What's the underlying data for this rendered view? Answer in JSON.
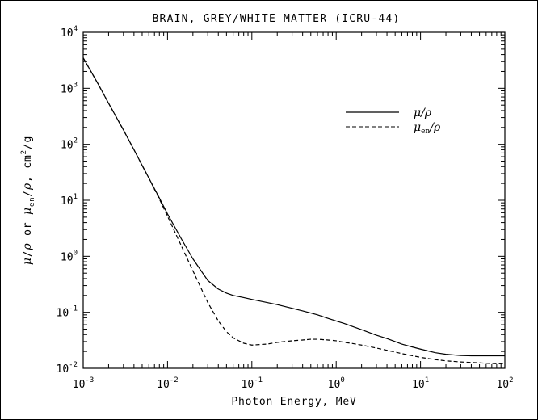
{
  "chart_data": {
    "type": "line",
    "title": "BRAIN, GREY/WHITE MATTER (ICRU-44)",
    "xlabel": "Photon Energy, MeV",
    "ylabel": {
      "mu": "μ",
      "rho": "ρ",
      "en": "en",
      "or": "or",
      "units": "cm",
      "units_exp": "2",
      "units_tail": "/g",
      "sep1": "/",
      "sep2": ",",
      "sep3": ","
    },
    "xscale": "log",
    "yscale": "log",
    "xlim": [
      0.001,
      100
    ],
    "ylim": [
      0.01,
      10000
    ],
    "grid": false,
    "legend_position": "top-right",
    "xticks": [
      {
        "base": "10",
        "exp": "-3",
        "value": 0.001
      },
      {
        "base": "10",
        "exp": "-2",
        "value": 0.01
      },
      {
        "base": "10",
        "exp": "-1",
        "value": 0.1
      },
      {
        "base": "10",
        "exp": "0",
        "value": 1
      },
      {
        "base": "10",
        "exp": "1",
        "value": 10
      },
      {
        "base": "10",
        "exp": "2",
        "value": 100
      }
    ],
    "yticks": [
      {
        "base": "10",
        "exp": "-2",
        "value": 0.01
      },
      {
        "base": "10",
        "exp": "-1",
        "value": 0.1
      },
      {
        "base": "10",
        "exp": "0",
        "value": 1
      },
      {
        "base": "10",
        "exp": "1",
        "value": 10
      },
      {
        "base": "10",
        "exp": "2",
        "value": 100
      },
      {
        "base": "10",
        "exp": "3",
        "value": 1000
      },
      {
        "base": "10",
        "exp": "4",
        "value": 10000
      }
    ],
    "series": [
      {
        "name": "μ/ρ",
        "name_main": "μ",
        "name_tail": "/ρ",
        "style": "solid",
        "color": "#000000",
        "x": [
          0.001,
          0.0015,
          0.002,
          0.003,
          0.004,
          0.005,
          0.006,
          0.008,
          0.01,
          0.015,
          0.02,
          0.03,
          0.04,
          0.05,
          0.06,
          0.08,
          0.1,
          0.15,
          0.2,
          0.3,
          0.4,
          0.5,
          0.6,
          0.8,
          1,
          1.25,
          1.5,
          2,
          3,
          4,
          5,
          6,
          8,
          10,
          15,
          20,
          30,
          40,
          50,
          60,
          80,
          100
        ],
        "y": [
          3500,
          1200,
          540,
          180,
          80,
          42,
          25,
          11,
          5.7,
          1.9,
          0.9,
          0.37,
          0.26,
          0.22,
          0.2,
          0.183,
          0.17,
          0.15,
          0.137,
          0.118,
          0.106,
          0.097,
          0.09,
          0.078,
          0.07,
          0.063,
          0.057,
          0.049,
          0.039,
          0.034,
          0.03,
          0.027,
          0.024,
          0.022,
          0.019,
          0.0178,
          0.0169,
          0.0167,
          0.0167,
          0.0167,
          0.0167,
          0.0167
        ]
      },
      {
        "name": "μen/ρ",
        "name_main": "μ",
        "name_sub": "en",
        "name_tail": "/ρ",
        "style": "dashed",
        "color": "#000000",
        "x": [
          0.001,
          0.0015,
          0.002,
          0.003,
          0.004,
          0.005,
          0.006,
          0.008,
          0.01,
          0.015,
          0.02,
          0.03,
          0.04,
          0.05,
          0.06,
          0.08,
          0.1,
          0.15,
          0.2,
          0.3,
          0.4,
          0.5,
          0.6,
          0.8,
          1,
          1.25,
          1.5,
          2,
          3,
          4,
          5,
          6,
          8,
          10,
          15,
          20,
          30,
          40,
          50,
          60,
          80,
          100
        ],
        "y": [
          3500,
          1200,
          540,
          180,
          80,
          42,
          25,
          10.5,
          5.2,
          1.4,
          0.55,
          0.15,
          0.07,
          0.045,
          0.035,
          0.028,
          0.026,
          0.027,
          0.029,
          0.031,
          0.032,
          0.033,
          0.033,
          0.032,
          0.031,
          0.029,
          0.028,
          0.026,
          0.023,
          0.021,
          0.0195,
          0.0183,
          0.0168,
          0.0157,
          0.0143,
          0.0136,
          0.013,
          0.0127,
          0.0125,
          0.0123,
          0.0121,
          0.012
        ]
      }
    ]
  }
}
